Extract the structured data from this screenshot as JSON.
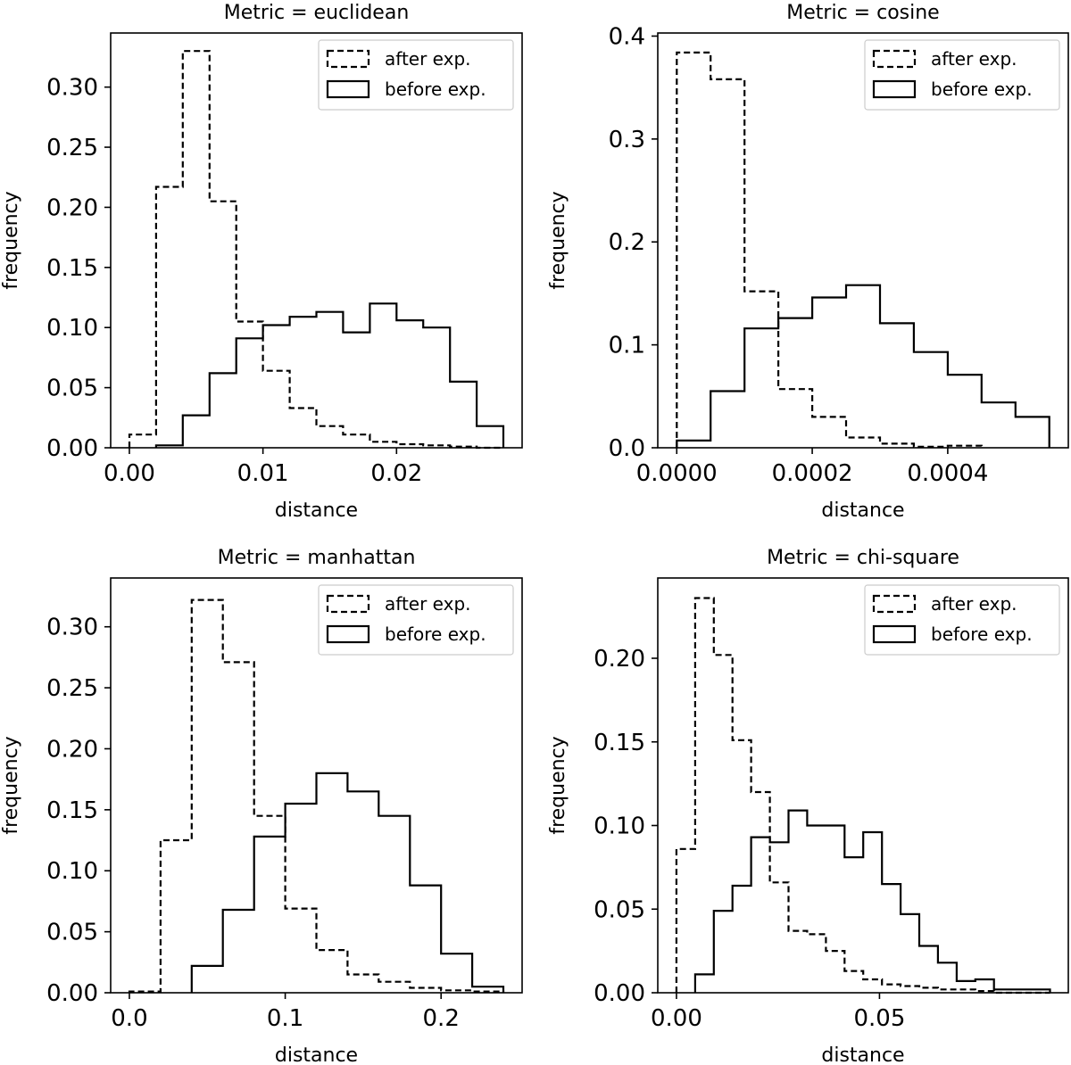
{
  "colors": {
    "line": "#000000",
    "background": "#ffffff"
  },
  "chart_data": [
    {
      "type": "histogram",
      "title": "Metric = euclidean",
      "xlabel": "distance",
      "ylabel": "frequency",
      "xlim": [
        -0.0014,
        0.0294
      ],
      "ylim": [
        0.0,
        0.345
      ],
      "xticks": [
        0.0,
        0.01,
        0.02
      ],
      "xticklabels": [
        "0.00",
        "0.01",
        "0.02"
      ],
      "yticks": [
        0.0,
        0.05,
        0.1,
        0.15,
        0.2,
        0.25,
        0.3
      ],
      "yticklabels": [
        "0.00",
        "0.05",
        "0.10",
        "0.15",
        "0.20",
        "0.25",
        "0.30"
      ],
      "legend_position": "top-right",
      "series": [
        {
          "name": "after exp.",
          "style": "dashed",
          "edges": [
            0.0,
            0.002,
            0.004,
            0.006,
            0.008,
            0.01,
            0.012,
            0.014,
            0.016,
            0.018,
            0.02,
            0.022,
            0.024,
            0.026,
            0.028
          ],
          "values": [
            0.011,
            0.217,
            0.33,
            0.205,
            0.105,
            0.064,
            0.033,
            0.018,
            0.011,
            0.005,
            0.003,
            0.002,
            0.001,
            0.0
          ]
        },
        {
          "name": "before exp.",
          "style": "solid",
          "edges": [
            0.002,
            0.004,
            0.006,
            0.008,
            0.01,
            0.012,
            0.014,
            0.016,
            0.018,
            0.02,
            0.022,
            0.024,
            0.026,
            0.028
          ],
          "values": [
            0.002,
            0.027,
            0.062,
            0.091,
            0.102,
            0.109,
            0.113,
            0.096,
            0.12,
            0.106,
            0.1,
            0.055,
            0.018
          ]
        }
      ]
    },
    {
      "type": "histogram",
      "title": "Metric = cosine",
      "xlabel": "distance",
      "ylabel": "frequency",
      "xlim": [
        -2.8e-05,
        0.000578
      ],
      "ylim": [
        0.0,
        0.403
      ],
      "xticks": [
        0.0,
        0.0002,
        0.0004
      ],
      "xticklabels": [
        "0.0000",
        "0.0002",
        "0.0004"
      ],
      "yticks": [
        0.0,
        0.1,
        0.2,
        0.3,
        0.4
      ],
      "yticklabels": [
        "0.0",
        "0.1",
        "0.2",
        "0.3",
        "0.4"
      ],
      "legend_position": "top-right",
      "series": [
        {
          "name": "after exp.",
          "style": "dashed",
          "edges": [
            0.0,
            5e-05,
            0.0001,
            0.00015,
            0.0002,
            0.00025,
            0.0003,
            0.00035,
            0.0004,
            0.00045
          ],
          "values": [
            0.384,
            0.358,
            0.152,
            0.057,
            0.03,
            0.01,
            0.004,
            0.001,
            0.002
          ]
        },
        {
          "name": "before exp.",
          "style": "solid",
          "edges": [
            0.0,
            5e-05,
            0.0001,
            0.00015,
            0.0002,
            0.00025,
            0.0003,
            0.00035,
            0.0004,
            0.00045,
            0.0005,
            0.00055
          ],
          "values": [
            0.007,
            0.055,
            0.116,
            0.126,
            0.146,
            0.158,
            0.121,
            0.093,
            0.071,
            0.044,
            0.03
          ]
        }
      ]
    },
    {
      "type": "histogram",
      "title": "Metric = manhattan",
      "xlabel": "distance",
      "ylabel": "frequency",
      "xlim": [
        -0.012,
        0.252
      ],
      "ylim": [
        0.0,
        0.34
      ],
      "xticks": [
        0.0,
        0.1,
        0.2
      ],
      "xticklabels": [
        "0.0",
        "0.1",
        "0.2"
      ],
      "yticks": [
        0.0,
        0.05,
        0.1,
        0.15,
        0.2,
        0.25,
        0.3
      ],
      "yticklabels": [
        "0.00",
        "0.05",
        "0.10",
        "0.15",
        "0.20",
        "0.25",
        "0.30"
      ],
      "legend_position": "top-right",
      "series": [
        {
          "name": "after exp.",
          "style": "dashed",
          "edges": [
            0.0,
            0.02,
            0.04,
            0.06,
            0.08,
            0.1,
            0.12,
            0.14,
            0.16,
            0.18,
            0.2,
            0.22,
            0.24
          ],
          "values": [
            0.001,
            0.125,
            0.322,
            0.271,
            0.145,
            0.069,
            0.035,
            0.015,
            0.009,
            0.004,
            0.002,
            0.001
          ]
        },
        {
          "name": "before exp.",
          "style": "solid",
          "edges": [
            0.04,
            0.06,
            0.08,
            0.1,
            0.12,
            0.14,
            0.16,
            0.18,
            0.2,
            0.22,
            0.24
          ],
          "values": [
            0.022,
            0.068,
            0.128,
            0.155,
            0.18,
            0.165,
            0.145,
            0.088,
            0.032,
            0.005
          ]
        }
      ]
    },
    {
      "type": "histogram",
      "title": "Metric = chi-square",
      "xlabel": "distance",
      "ylabel": "frequency",
      "xlim": [
        -0.0046,
        0.0965
      ],
      "ylim": [
        0.0,
        0.248
      ],
      "xticks": [
        0.0,
        0.05
      ],
      "xticklabels": [
        "0.00",
        "0.05"
      ],
      "yticks": [
        0.0,
        0.05,
        0.1,
        0.15,
        0.2
      ],
      "yticklabels": [
        "0.00",
        "0.05",
        "0.10",
        "0.15",
        "0.20"
      ],
      "legend_position": "top-right",
      "series": [
        {
          "name": "after exp.",
          "style": "dashed",
          "edges": [
            0.0,
            0.0046,
            0.0092,
            0.0138,
            0.0184,
            0.023,
            0.0276,
            0.0322,
            0.0368,
            0.0414,
            0.046,
            0.0506,
            0.0552,
            0.0598,
            0.0644,
            0.069,
            0.0736,
            0.0782,
            0.0828,
            0.0874,
            0.092
          ],
          "values": [
            0.086,
            0.236,
            0.202,
            0.151,
            0.12,
            0.066,
            0.037,
            0.035,
            0.025,
            0.013,
            0.008,
            0.005,
            0.004,
            0.003,
            0.002,
            0.002,
            0.001,
            0.0,
            0.0,
            0.0
          ]
        },
        {
          "name": "before exp.",
          "style": "solid",
          "edges": [
            0.0046,
            0.0092,
            0.0138,
            0.0184,
            0.023,
            0.0276,
            0.0322,
            0.0368,
            0.0414,
            0.046,
            0.0506,
            0.0552,
            0.0598,
            0.0644,
            0.069,
            0.0736,
            0.0782,
            0.0828,
            0.0874,
            0.092
          ],
          "values": [
            0.011,
            0.049,
            0.064,
            0.093,
            0.09,
            0.109,
            0.1,
            0.1,
            0.081,
            0.096,
            0.065,
            0.047,
            0.028,
            0.018,
            0.007,
            0.008,
            0.002,
            0.002,
            0.002
          ]
        }
      ]
    }
  ]
}
